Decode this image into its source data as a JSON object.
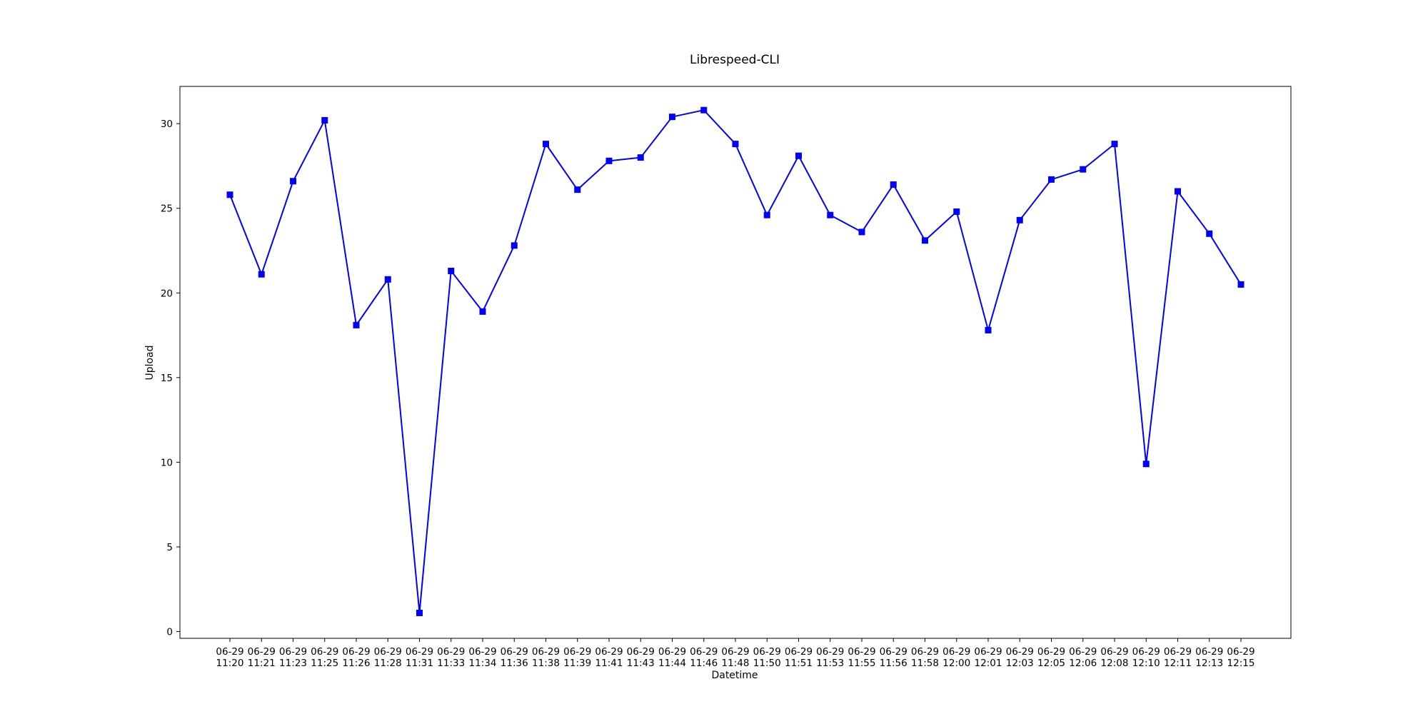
{
  "chart_data": {
    "type": "line",
    "title": "Librespeed-CLI",
    "xlabel": "Datetime",
    "ylabel": "Upload",
    "ylim": [
      -0.4,
      32.2
    ],
    "yticks": [
      0,
      5,
      10,
      15,
      20,
      25,
      30
    ],
    "grid": false,
    "legend": "none",
    "line_color": "#0000ff",
    "marker": "square",
    "categories": [
      [
        "06-29",
        "11:20"
      ],
      [
        "06-29",
        "11:21"
      ],
      [
        "06-29",
        "11:23"
      ],
      [
        "06-29",
        "11:25"
      ],
      [
        "06-29",
        "11:26"
      ],
      [
        "06-29",
        "11:28"
      ],
      [
        "06-29",
        "11:31"
      ],
      [
        "06-29",
        "11:33"
      ],
      [
        "06-29",
        "11:34"
      ],
      [
        "06-29",
        "11:36"
      ],
      [
        "06-29",
        "11:38"
      ],
      [
        "06-29",
        "11:39"
      ],
      [
        "06-29",
        "11:41"
      ],
      [
        "06-29",
        "11:43"
      ],
      [
        "06-29",
        "11:44"
      ],
      [
        "06-29",
        "11:46"
      ],
      [
        "06-29",
        "11:48"
      ],
      [
        "06-29",
        "11:50"
      ],
      [
        "06-29",
        "11:51"
      ],
      [
        "06-29",
        "11:53"
      ],
      [
        "06-29",
        "11:55"
      ],
      [
        "06-29",
        "11:56"
      ],
      [
        "06-29",
        "11:58"
      ],
      [
        "06-29",
        "12:00"
      ],
      [
        "06-29",
        "12:01"
      ],
      [
        "06-29",
        "12:03"
      ],
      [
        "06-29",
        "12:05"
      ],
      [
        "06-29",
        "12:06"
      ],
      [
        "06-29",
        "12:08"
      ],
      [
        "06-29",
        "12:10"
      ],
      [
        "06-29",
        "12:11"
      ],
      [
        "06-29",
        "12:13"
      ],
      [
        "06-29",
        "12:15"
      ]
    ],
    "series": [
      {
        "values": [
          25.8,
          21.1,
          26.6,
          30.2,
          18.1,
          20.8,
          1.1,
          21.3,
          18.9,
          22.8,
          28.8,
          26.1,
          27.8,
          28.0,
          30.4,
          30.8,
          28.8,
          24.6,
          28.1,
          24.6,
          23.6,
          26.4,
          23.1,
          24.8,
          17.8,
          24.3,
          26.7,
          27.3,
          28.8,
          9.9,
          26.0,
          23.5,
          20.5
        ]
      }
    ]
  }
}
